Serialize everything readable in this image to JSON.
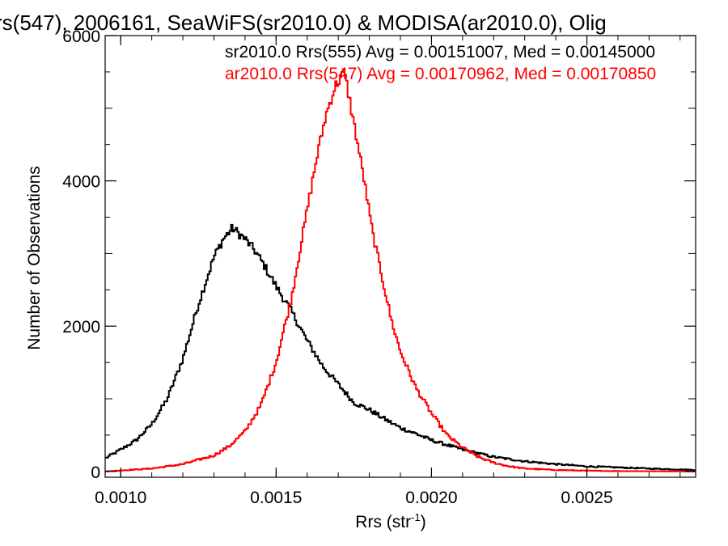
{
  "chart_data": {
    "type": "line",
    "title": "rs(547), 2006161, SeaWiFS(sr2010.0) & MODISA(ar2010.0), Olig",
    "xlabel": "Rrs (str",
    "xlabel_sup": "-1",
    "xlabel_close": ")",
    "ylabel": "Number of Observations",
    "xlim": [
      0.00095,
      0.00285
    ],
    "ylim": [
      -80,
      6000
    ],
    "x_ticks": [
      {
        "value": 0.001,
        "label": "0.0010"
      },
      {
        "value": 0.0015,
        "label": "0.0015"
      },
      {
        "value": 0.002,
        "label": "0.0020"
      },
      {
        "value": 0.0025,
        "label": "0.0025"
      }
    ],
    "y_ticks": [
      {
        "value": 0,
        "label": "0"
      },
      {
        "value": 2000,
        "label": "2000"
      },
      {
        "value": 4000,
        "label": "4000"
      },
      {
        "value": 6000,
        "label": "6000"
      }
    ],
    "legend": [
      {
        "text": "sr2010.0 Rrs(555) Avg = 0.00151007, Med = 0.00145000",
        "color": "#000000"
      },
      {
        "text": "ar2010.0 Rrs(547) Avg = 0.00170962, Med = 0.00170850",
        "color": "#ff0000"
      }
    ],
    "series": [
      {
        "color": "#000000",
        "x": [
          0.00095,
          0.001,
          0.00105,
          0.0011,
          0.00115,
          0.0012,
          0.00125,
          0.0013,
          0.00133,
          0.00136,
          0.0014,
          0.00143,
          0.00146,
          0.0015,
          0.00155,
          0.0016,
          0.00165,
          0.0017,
          0.00175,
          0.0018,
          0.00185,
          0.0019,
          0.00195,
          0.002,
          0.0021,
          0.0022,
          0.0023,
          0.0024,
          0.0025,
          0.0026,
          0.0027,
          0.00285
        ],
        "y": [
          180,
          300,
          430,
          650,
          1000,
          1550,
          2300,
          2950,
          3200,
          3350,
          3200,
          3050,
          2850,
          2550,
          2200,
          1800,
          1450,
          1200,
          950,
          850,
          720,
          600,
          520,
          430,
          300,
          200,
          140,
          100,
          70,
          55,
          40,
          20
        ]
      },
      {
        "color": "#ff0000",
        "x": [
          0.00095,
          0.0011,
          0.0012,
          0.0013,
          0.00135,
          0.0014,
          0.00145,
          0.0015,
          0.00155,
          0.0016,
          0.00163,
          0.00166,
          0.00169,
          0.00172,
          0.00175,
          0.00178,
          0.00181,
          0.00184,
          0.00187,
          0.0019,
          0.00195,
          0.002,
          0.00205,
          0.0021,
          0.00215,
          0.0022,
          0.00225,
          0.0023,
          0.0024,
          0.0025,
          0.0026,
          0.00285
        ],
        "y": [
          0,
          40,
          100,
          220,
          350,
          550,
          900,
          1500,
          2400,
          3600,
          4300,
          4900,
          5300,
          5500,
          4800,
          4100,
          3300,
          2700,
          2100,
          1650,
          1150,
          800,
          500,
          330,
          200,
          120,
          70,
          40,
          20,
          10,
          5,
          0
        ]
      }
    ]
  }
}
